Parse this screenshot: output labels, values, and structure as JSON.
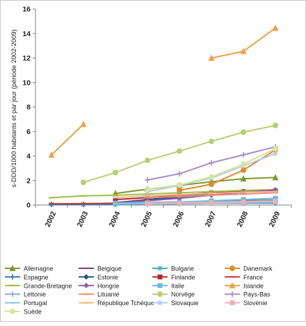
{
  "chart_data": {
    "type": "line",
    "title": "",
    "xlabel": "",
    "ylabel": "s-DDD/1000 habitants et par jour (période 2002-2009)",
    "ylim": [
      0,
      16
    ],
    "yticks": [
      0,
      2,
      4,
      6,
      8,
      10,
      12,
      14,
      16
    ],
    "categories": [
      "2002",
      "2003",
      "2004",
      "2005",
      "2006",
      "2007",
      "2008",
      "2009"
    ],
    "grid": false,
    "legend_position": "bottom",
    "series": [
      {
        "name": "Allemagne",
        "color": "#7a9a2e",
        "marker": "triangle",
        "values": [
          null,
          null,
          0.95,
          1.3,
          1.6,
          1.9,
          2.15,
          2.25
        ]
      },
      {
        "name": "Belgique",
        "color": "#7e3f8c",
        "marker": "dash",
        "values": [
          null,
          null,
          null,
          0.45,
          0.7,
          0.95,
          1.1,
          1.2
        ]
      },
      {
        "name": "Bulgarie",
        "color": "#4aaac7",
        "marker": "star",
        "values": [
          0.05,
          0.05,
          0.05,
          0.1,
          0.1,
          0.15,
          0.15,
          0.15
        ]
      },
      {
        "name": "Danemark",
        "color": "#e08a2c",
        "marker": "circle",
        "values": [
          null,
          null,
          null,
          null,
          1.2,
          1.7,
          2.85,
          4.5
        ]
      },
      {
        "name": "Espagne",
        "color": "#3f6fad",
        "marker": "plus",
        "values": [
          0.05,
          0.05,
          0.1,
          0.15,
          0.2,
          0.3,
          0.35,
          0.4
        ]
      },
      {
        "name": "Estonie",
        "color": "#2e4f7c",
        "marker": "diamond",
        "values": [
          null,
          null,
          0.2,
          0.45,
          0.65,
          0.95,
          1.1,
          1.2
        ]
      },
      {
        "name": "Finlande",
        "color": "#b22a2f",
        "marker": "square",
        "values": [
          null,
          null,
          0.45,
          0.6,
          0.8,
          1.0,
          1.1,
          1.15
        ]
      },
      {
        "name": "France",
        "color": "#c03a3a",
        "marker": "dash",
        "values": [
          0.1,
          0.12,
          0.15,
          0.2,
          0.25,
          0.3,
          0.35,
          0.35
        ]
      },
      {
        "name": "Grande-Bretagne",
        "color": "#9fbd48",
        "marker": "dash",
        "values": [
          0.6,
          0.75,
          0.8,
          0.9,
          1.0,
          1.1,
          1.2,
          1.25
        ]
      },
      {
        "name": "Hongrie",
        "color": "#8a5ca8",
        "marker": "diamond",
        "values": [
          null,
          null,
          0.2,
          0.35,
          0.55,
          0.8,
          1.05,
          1.25
        ]
      },
      {
        "name": "Italie",
        "color": "#6fb6d9",
        "marker": "square",
        "values": [
          null,
          null,
          0.15,
          0.2,
          0.25,
          0.35,
          0.45,
          0.55
        ]
      },
      {
        "name": "Islande",
        "color": "#f0a040",
        "marker": "triangle",
        "values": [
          4.1,
          6.6,
          null,
          null,
          null,
          12.0,
          12.55,
          14.45
        ]
      },
      {
        "name": "Lettonie",
        "color": "#8fa8d8",
        "marker": "plus",
        "values": [
          null,
          null,
          null,
          0.05,
          0.1,
          0.15,
          0.2,
          0.25
        ]
      },
      {
        "name": "Lituanie",
        "color": "#e8907f",
        "marker": "dash",
        "values": [
          null,
          null,
          null,
          0.6,
          0.7,
          0.8,
          0.9,
          1.0
        ]
      },
      {
        "name": "Norvège",
        "color": "#b7cf74",
        "marker": "circle",
        "values": [
          null,
          1.85,
          2.65,
          3.65,
          4.4,
          5.2,
          5.95,
          6.5
        ]
      },
      {
        "name": "Pays-Bas",
        "color": "#a48ec2",
        "marker": "plus",
        "values": [
          null,
          null,
          null,
          2.05,
          2.55,
          3.45,
          4.1,
          4.75
        ]
      },
      {
        "name": "Portugal",
        "color": "#8cc8e0",
        "marker": "dash",
        "values": [
          null,
          null,
          0.1,
          0.15,
          0.2,
          0.25,
          0.3,
          0.35
        ]
      },
      {
        "name": "République Tchèque",
        "color": "#f5b980",
        "marker": "dash",
        "values": [
          null,
          null,
          0.6,
          0.75,
          0.85,
          0.95,
          1.05,
          1.1
        ]
      },
      {
        "name": "Slovaquie",
        "color": "#b8cbe6",
        "marker": "star",
        "values": [
          null,
          null,
          null,
          1.1,
          1.6,
          2.2,
          3.2,
          4.2
        ]
      },
      {
        "name": "Slovénie",
        "color": "#eab3b3",
        "marker": "square",
        "values": [
          null,
          null,
          null,
          0.1,
          0.15,
          0.2,
          0.25,
          0.3
        ]
      },
      {
        "name": "Suède",
        "color": "#d8e49f",
        "marker": "circle",
        "values": [
          null,
          null,
          null,
          1.3,
          1.65,
          2.3,
          3.35,
          4.6
        ]
      }
    ]
  }
}
